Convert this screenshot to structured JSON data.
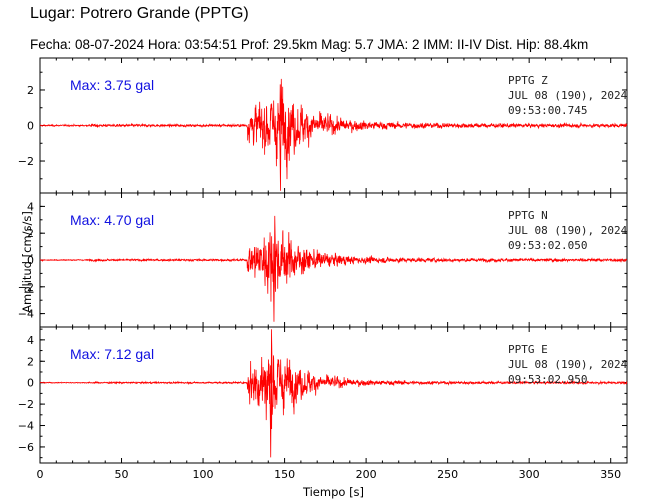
{
  "header": {
    "title": "Lugar: Potrero Grande (PPTG)",
    "info": "Fecha: 08-07-2024 Hora: 03:54:51 Prof: 29.5km Mag: 5.7   JMA:  2 IMM: II-IV Dist. Hip: 88.4km"
  },
  "chart_data": {
    "type": "line",
    "xlabel": "Tiempo  [s]",
    "ylabel": "Amplitud  [cm/s/s]",
    "xlim": [
      0,
      360
    ],
    "xticks": [
      "0",
      "50",
      "100",
      "150",
      "200",
      "250",
      "300",
      "350"
    ],
    "series_color": "#ff0000",
    "panels": [
      {
        "component": "Z",
        "max_label": "Max: 3.75 gal",
        "max_value": 3.75,
        "station_line1": "PPTG   Z",
        "station_line2": "JUL 08 (190), 2024",
        "station_line3": "09:53:00.745",
        "ylim": [
          -3.8,
          3.8
        ],
        "yticks": [
          "2",
          "0",
          "−2"
        ],
        "envelope": {
          "noise_start_s": 0,
          "low_noise_until_s": 30,
          "onset_s": 127,
          "peak_s": 147,
          "coda_end_s": 360,
          "peak_amp": 3.75
        }
      },
      {
        "component": "N",
        "max_label": "Max: 4.70 gal",
        "max_value": 4.7,
        "station_line1": "PPTG   N",
        "station_line2": "JUL 08 (190), 2024",
        "station_line3": "09:53:02.050",
        "ylim": [
          -5.0,
          5.0
        ],
        "yticks": [
          "4",
          "2",
          "0",
          "−2",
          "−4"
        ],
        "envelope": {
          "noise_start_s": 0,
          "low_noise_until_s": 30,
          "onset_s": 127,
          "peak_s": 143,
          "coda_end_s": 360,
          "peak_amp": 4.7
        }
      },
      {
        "component": "E",
        "max_label": "Max: 7.12 gal",
        "max_value": 7.12,
        "station_line1": "PPTG   E",
        "station_line2": "JUL 08 (190), 2024",
        "station_line3": "09:53:02.950",
        "ylim": [
          -7.5,
          5.2
        ],
        "yticks": [
          "4",
          "2",
          "0",
          "−2",
          "−4",
          "−6"
        ],
        "envelope": {
          "noise_start_s": 0,
          "low_noise_until_s": 30,
          "onset_s": 127,
          "peak_s": 141,
          "coda_end_s": 360,
          "peak_amp": 7.12
        }
      }
    ]
  }
}
